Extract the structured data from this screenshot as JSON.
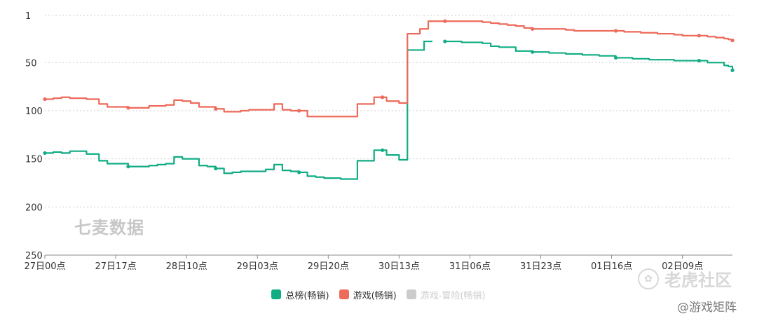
{
  "chart_data": {
    "type": "line",
    "y_inverted": true,
    "ylim": [
      1,
      250
    ],
    "y_ticks": [
      "1",
      "50",
      "100",
      "150",
      "200",
      "250"
    ],
    "y_tick_values": [
      1,
      50,
      100,
      150,
      200,
      250
    ],
    "x_tick_labels": [
      "27日00点",
      "27日17点",
      "28日10点",
      "29日03点",
      "29日20点",
      "30日13点",
      "31日06点",
      "31日23点",
      "01日16点",
      "02日09点"
    ],
    "grid": true,
    "legend_position": "bottom-center",
    "series": [
      {
        "name": "总榜(畅销)",
        "color": "#10ac84",
        "visible": true,
        "points": [
          [
            0,
            144
          ],
          [
            2,
            143
          ],
          [
            4,
            144
          ],
          [
            6,
            142
          ],
          [
            8,
            142
          ],
          [
            10,
            145
          ],
          [
            12,
            145
          ],
          [
            13,
            152
          ],
          [
            15,
            155
          ],
          [
            17,
            155
          ],
          [
            20,
            158
          ],
          [
            23,
            158
          ],
          [
            25,
            157
          ],
          [
            27,
            156
          ],
          [
            29,
            155
          ],
          [
            31,
            148
          ],
          [
            33,
            150
          ],
          [
            35,
            150
          ],
          [
            37,
            157
          ],
          [
            39,
            158
          ],
          [
            41,
            160
          ],
          [
            43,
            165
          ],
          [
            45,
            164
          ],
          [
            47,
            163
          ],
          [
            49,
            163
          ],
          [
            51,
            163
          ],
          [
            53,
            161
          ],
          [
            55,
            156
          ],
          [
            57,
            162
          ],
          [
            59,
            163
          ],
          [
            61,
            164
          ],
          [
            63,
            168
          ],
          [
            65,
            169
          ],
          [
            67,
            170
          ],
          [
            69,
            170
          ],
          [
            71,
            171
          ],
          [
            73,
            171
          ],
          [
            75,
            152
          ],
          [
            77,
            152
          ],
          [
            79,
            141
          ],
          [
            81,
            141
          ],
          [
            82,
            146
          ],
          [
            84,
            146
          ],
          [
            85,
            151
          ],
          [
            86,
            151
          ],
          [
            87,
            37
          ],
          [
            90,
            37
          ],
          [
            91,
            28
          ],
          [
            93,
            28
          ],
          [
            null,
            null
          ],
          [
            96,
            28
          ],
          [
            98,
            28
          ],
          [
            100,
            29
          ],
          [
            103,
            29
          ],
          [
            105,
            30
          ],
          [
            107,
            33
          ],
          [
            109,
            34
          ],
          [
            111,
            34
          ],
          [
            113,
            38
          ],
          [
            115,
            38
          ],
          [
            117,
            39
          ],
          [
            119,
            39
          ],
          [
            121,
            40
          ],
          [
            123,
            40
          ],
          [
            125,
            41
          ],
          [
            127,
            41
          ],
          [
            129,
            42
          ],
          [
            131,
            42
          ],
          [
            133,
            43
          ],
          [
            135,
            43
          ],
          [
            137,
            45
          ],
          [
            139,
            45
          ],
          [
            141,
            46
          ],
          [
            143,
            46
          ],
          [
            145,
            47
          ],
          [
            147,
            47
          ],
          [
            149,
            47
          ],
          [
            151,
            48
          ],
          [
            153,
            48
          ],
          [
            155,
            48
          ],
          [
            157,
            48
          ],
          [
            159,
            50
          ],
          [
            161,
            50
          ],
          [
            163,
            53
          ],
          [
            164,
            54
          ],
          [
            165,
            58
          ]
        ]
      },
      {
        "name": "游戏(畅销)",
        "color": "#ee6a5a",
        "visible": true,
        "points": [
          [
            0,
            88
          ],
          [
            2,
            87
          ],
          [
            4,
            86
          ],
          [
            6,
            87
          ],
          [
            8,
            87
          ],
          [
            10,
            88
          ],
          [
            12,
            88
          ],
          [
            13,
            93
          ],
          [
            15,
            96
          ],
          [
            17,
            96
          ],
          [
            20,
            97
          ],
          [
            23,
            97
          ],
          [
            25,
            95
          ],
          [
            27,
            95
          ],
          [
            29,
            94
          ],
          [
            31,
            89
          ],
          [
            33,
            90
          ],
          [
            35,
            92
          ],
          [
            37,
            96
          ],
          [
            39,
            96
          ],
          [
            41,
            98
          ],
          [
            43,
            101
          ],
          [
            45,
            101
          ],
          [
            47,
            100
          ],
          [
            49,
            99
          ],
          [
            51,
            99
          ],
          [
            53,
            99
          ],
          [
            55,
            93
          ],
          [
            57,
            99
          ],
          [
            59,
            100
          ],
          [
            61,
            100
          ],
          [
            63,
            106
          ],
          [
            65,
            106
          ],
          [
            67,
            106
          ],
          [
            69,
            106
          ],
          [
            71,
            106
          ],
          [
            73,
            106
          ],
          [
            75,
            93
          ],
          [
            77,
            93
          ],
          [
            79,
            86
          ],
          [
            81,
            86
          ],
          [
            82,
            90
          ],
          [
            84,
            90
          ],
          [
            85,
            92
          ],
          [
            86,
            92
          ],
          [
            87,
            20
          ],
          [
            89,
            20
          ],
          [
            90,
            15
          ],
          [
            92,
            7
          ],
          [
            94,
            7
          ],
          [
            96,
            7
          ],
          [
            98,
            7
          ],
          [
            100,
            7
          ],
          [
            103,
            7
          ],
          [
            105,
            8
          ],
          [
            107,
            9
          ],
          [
            109,
            10
          ],
          [
            111,
            11
          ],
          [
            113,
            12
          ],
          [
            115,
            14
          ],
          [
            117,
            15
          ],
          [
            119,
            15
          ],
          [
            121,
            15
          ],
          [
            123,
            15
          ],
          [
            125,
            16
          ],
          [
            127,
            17
          ],
          [
            129,
            17
          ],
          [
            131,
            17
          ],
          [
            133,
            17
          ],
          [
            135,
            17
          ],
          [
            137,
            17
          ],
          [
            139,
            18
          ],
          [
            141,
            18
          ],
          [
            143,
            19
          ],
          [
            145,
            19
          ],
          [
            147,
            20
          ],
          [
            149,
            20
          ],
          [
            151,
            21
          ],
          [
            153,
            22
          ],
          [
            155,
            22
          ],
          [
            157,
            22
          ],
          [
            159,
            23
          ],
          [
            161,
            24
          ],
          [
            163,
            25
          ],
          [
            164,
            26
          ],
          [
            165,
            27
          ]
        ]
      },
      {
        "name": "游戏-冒险(畅销)",
        "color": "#cccccc",
        "visible": false,
        "points": []
      }
    ]
  },
  "watermarks": {
    "chart": "七麦数据",
    "tiger": "老虎社区",
    "matrix": "@游戏矩阵"
  }
}
